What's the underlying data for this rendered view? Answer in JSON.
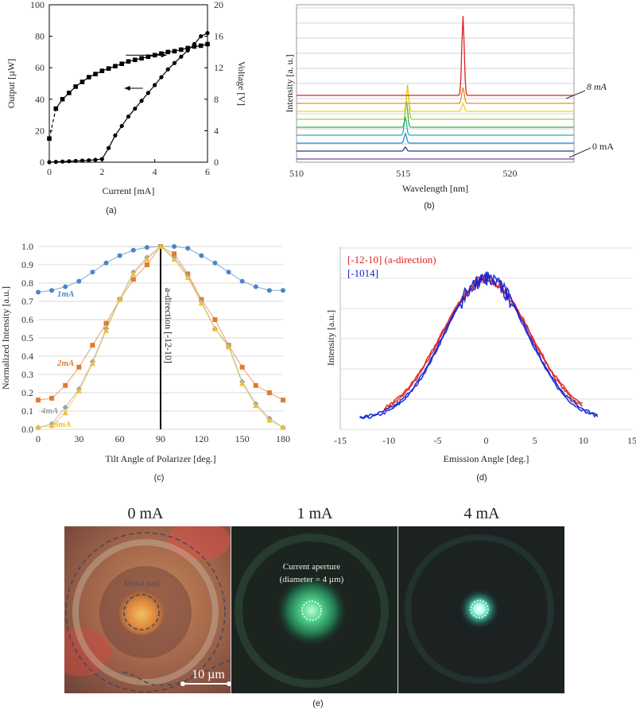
{
  "chart_data": [
    {
      "type": "line",
      "caption": "(a)",
      "xlabel": "Current [mA]",
      "ylabel": "Output [µW]",
      "ylabel_right": "Voltage [V]",
      "xlim": [
        0,
        6
      ],
      "ylim": [
        0,
        100
      ],
      "ylim_right": [
        0,
        20
      ],
      "xticks": [
        0,
        2,
        4,
        6
      ],
      "yticks": [
        0,
        20,
        40,
        60,
        80,
        100
      ],
      "yticks_right": [
        0,
        4,
        8,
        12,
        16,
        20
      ],
      "series": [
        {
          "axis": "left",
          "marker": "circle",
          "x": [
            0,
            0.25,
            0.5,
            0.75,
            1.0,
            1.25,
            1.5,
            1.75,
            2.0,
            2.25,
            2.5,
            2.75,
            3.0,
            3.25,
            3.5,
            3.75,
            4.0,
            4.25,
            4.5,
            4.75,
            5.0,
            5.25,
            5.5,
            5.75,
            6.0
          ],
          "y": [
            0,
            0.2,
            0.4,
            0.6,
            0.8,
            1.0,
            1.2,
            1.5,
            2.0,
            9,
            17,
            23,
            29,
            34,
            39,
            44,
            49,
            54,
            59,
            63,
            67,
            71,
            75,
            80,
            82
          ]
        },
        {
          "axis": "right",
          "marker": "square",
          "x": [
            0,
            0.25,
            0.5,
            0.75,
            1.0,
            1.25,
            1.5,
            1.75,
            2.0,
            2.25,
            2.5,
            2.75,
            3.0,
            3.25,
            3.5,
            3.75,
            4.0,
            4.25,
            4.5,
            4.75,
            5.0,
            5.25,
            5.5,
            5.75,
            6.0
          ],
          "y": [
            3.0,
            6.8,
            8.0,
            8.8,
            9.6,
            10.2,
            10.8,
            11.2,
            11.6,
            11.9,
            12.2,
            12.5,
            12.8,
            13.0,
            13.2,
            13.4,
            13.6,
            13.8,
            14.0,
            14.1,
            14.3,
            14.5,
            14.7,
            14.8,
            15.0
          ]
        }
      ]
    },
    {
      "type": "line",
      "caption": "(b)",
      "xlabel": "Wavelength [nm]",
      "ylabel": "Intensity [a. u.]",
      "xlim": [
        510,
        523
      ],
      "xticks": [
        510,
        515,
        520
      ],
      "annotations": [
        "8 mA",
        "0 mA"
      ],
      "series": [
        {
          "color": "#7b3fa0",
          "offset": 0.0,
          "peaks": []
        },
        {
          "color": "#1f3f7a",
          "offset": 1.0,
          "peaks": [
            {
              "x": 515.1,
              "h": 0.5
            }
          ]
        },
        {
          "color": "#2a8fd8",
          "offset": 2.0,
          "peaks": [
            {
              "x": 515.1,
              "h": 1.2
            }
          ]
        },
        {
          "color": "#24b0b0",
          "offset": 3.0,
          "peaks": [
            {
              "x": 515.1,
              "h": 2.3
            }
          ]
        },
        {
          "color": "#40b040",
          "offset": 4.0,
          "peaks": [
            {
              "x": 515.15,
              "h": 3.3
            }
          ]
        },
        {
          "color": "#9ad040",
          "offset": 5.0,
          "peaks": [
            {
              "x": 515.2,
              "h": 4.3
            }
          ]
        },
        {
          "color": "#f0d020",
          "offset": 6.0,
          "peaks": [
            {
              "x": 515.2,
              "h": 3.0
            },
            {
              "x": 517.8,
              "h": 1.0
            }
          ]
        },
        {
          "color": "#f08a20",
          "offset": 7.0,
          "peaks": [
            {
              "x": 517.8,
              "h": 2.0
            }
          ]
        },
        {
          "color": "#e02020",
          "offset": 8.0,
          "peaks": [
            {
              "x": 517.8,
              "h": 10.0
            }
          ]
        }
      ]
    },
    {
      "type": "line",
      "caption": "(c)",
      "xlabel": "Tilt Angle of Polarizer  [deg.]",
      "ylabel": "Normalized Intensity [a.u.]",
      "xlim": [
        0,
        180
      ],
      "ylim": [
        0,
        1.0
      ],
      "xticks": [
        0,
        30,
        60,
        90,
        120,
        150,
        180
      ],
      "yticks": [
        0.0,
        0.1,
        0.2,
        0.3,
        0.4,
        0.5,
        0.6,
        0.7,
        0.8,
        0.9,
        1.0
      ],
      "vline": {
        "x": 90,
        "label": "a-direction [-12-10]"
      },
      "series": [
        {
          "name": "1mA",
          "color": "#4a86c8",
          "marker": "circle",
          "x": [
            0,
            10,
            20,
            30,
            40,
            50,
            60,
            70,
            80,
            90,
            100,
            110,
            120,
            130,
            140,
            150,
            160,
            170,
            180
          ],
          "y": [
            0.75,
            0.76,
            0.78,
            0.81,
            0.86,
            0.91,
            0.95,
            0.98,
            0.995,
            1.0,
            1.0,
            0.99,
            0.95,
            0.91,
            0.86,
            0.81,
            0.78,
            0.76,
            0.76
          ]
        },
        {
          "name": "2mA",
          "color": "#e07a30",
          "marker": "square",
          "x": [
            0,
            10,
            20,
            30,
            40,
            50,
            60,
            70,
            80,
            90,
            100,
            110,
            120,
            130,
            140,
            150,
            160,
            170,
            180
          ],
          "y": [
            0.16,
            0.17,
            0.24,
            0.34,
            0.46,
            0.58,
            0.71,
            0.82,
            0.9,
            1.0,
            0.96,
            0.85,
            0.71,
            0.6,
            0.46,
            0.34,
            0.24,
            0.2,
            0.16
          ]
        },
        {
          "name": "4mA",
          "color": "#a0a0a0",
          "marker": "diamond",
          "x": [
            0,
            10,
            20,
            30,
            40,
            50,
            60,
            70,
            80,
            90,
            100,
            110,
            120,
            130,
            140,
            150,
            160,
            170,
            180
          ],
          "y": [
            0.01,
            0.03,
            0.12,
            0.22,
            0.37,
            0.55,
            0.71,
            0.86,
            0.94,
            1.0,
            0.94,
            0.84,
            0.7,
            0.55,
            0.46,
            0.26,
            0.14,
            0.06,
            0.01
          ]
        },
        {
          "name": "8mA",
          "color": "#f0c030",
          "marker": "triangle",
          "x": [
            0,
            10,
            20,
            30,
            40,
            50,
            60,
            70,
            80,
            90,
            100,
            110,
            120,
            130,
            140,
            150,
            160,
            170,
            180
          ],
          "y": [
            0.01,
            0.02,
            0.09,
            0.21,
            0.36,
            0.54,
            0.71,
            0.85,
            0.93,
            1.0,
            0.93,
            0.83,
            0.69,
            0.55,
            0.45,
            0.25,
            0.13,
            0.05,
            0.01
          ]
        }
      ]
    },
    {
      "type": "line",
      "caption": "(d)",
      "xlabel": "Emission Angle [deg.]",
      "ylabel": "Intensity [a.u.]",
      "xlim": [
        -15,
        15
      ],
      "xticks": [
        -15,
        -10,
        -5,
        0,
        5,
        10,
        15
      ],
      "series": [
        {
          "name": "[-12-10] (a-direction)",
          "color": "#e02020",
          "center": 0,
          "sigma": 4.6,
          "xrange": [
            -10.5,
            10
          ],
          "amp": 0.92
        },
        {
          "name": "[-1014]",
          "color": "#1020d0",
          "center": 0,
          "sigma": 4.3,
          "xrange": [
            -13,
            11.5
          ],
          "amp": 0.93
        }
      ]
    }
  ],
  "photos": {
    "caption": "(e)",
    "panels": [
      {
        "title": "0 mA",
        "label": "Metal pad",
        "scale": "10 µm"
      },
      {
        "title": "1 mA",
        "label_line1": "Current aperture",
        "label_line2": "(diameter = 4 µm)"
      },
      {
        "title": "4 mA"
      }
    ]
  }
}
